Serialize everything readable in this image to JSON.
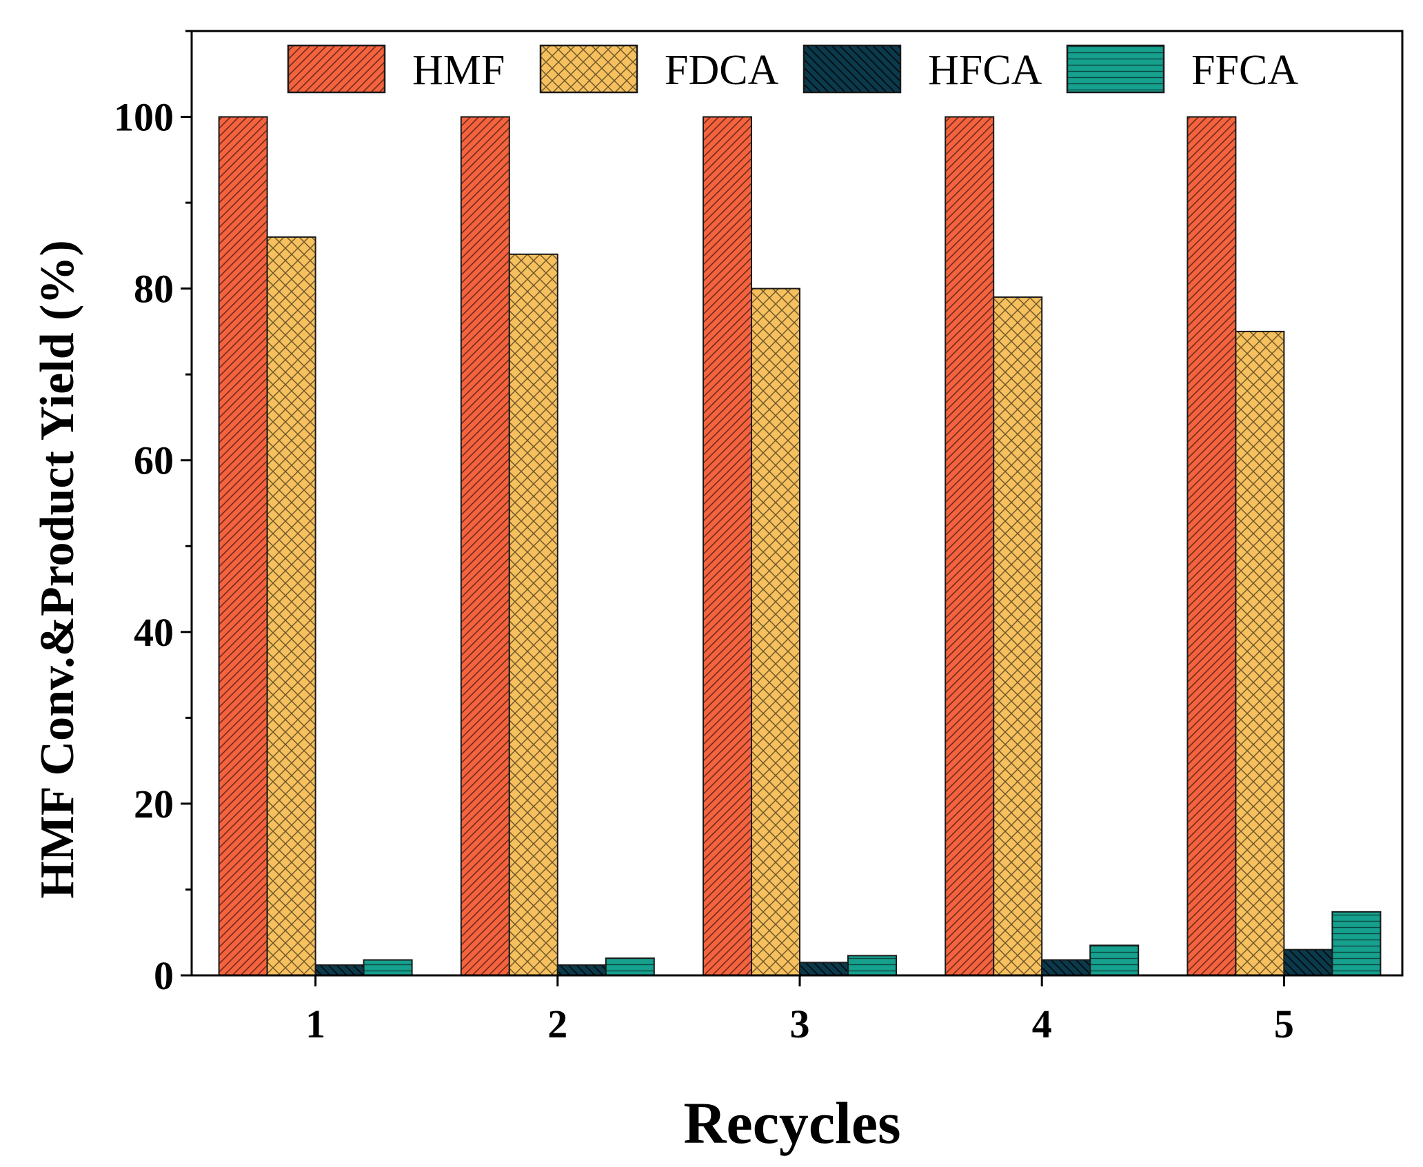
{
  "chart_data": {
    "type": "bar",
    "title": "",
    "xlabel": "Recycles",
    "ylabel": "HMF Conv.&Product Yield (%)",
    "categories": [
      "1",
      "2",
      "3",
      "4",
      "5"
    ],
    "series": [
      {
        "name": "HMF",
        "color": "#f4623e",
        "pattern": "diag-fine",
        "values": [
          100,
          100,
          100,
          100,
          100
        ]
      },
      {
        "name": "FDCA",
        "color": "#f6c05e",
        "pattern": "crosshatch",
        "values": [
          86,
          84,
          80,
          79,
          75
        ]
      },
      {
        "name": "HFCA",
        "color": "#0b3a4d",
        "pattern": "diag-back",
        "values": [
          1.2,
          1.2,
          1.5,
          1.8,
          3.0
        ]
      },
      {
        "name": "FFCA",
        "color": "#16a08e",
        "pattern": "horizontal",
        "values": [
          1.8,
          2.0,
          2.3,
          3.5,
          7.4
        ]
      }
    ],
    "ylim": [
      0,
      110
    ],
    "yticks": [
      0,
      20,
      40,
      60,
      80,
      100
    ],
    "y_minor_step": 10,
    "legend_position": "top",
    "grid": false
  }
}
